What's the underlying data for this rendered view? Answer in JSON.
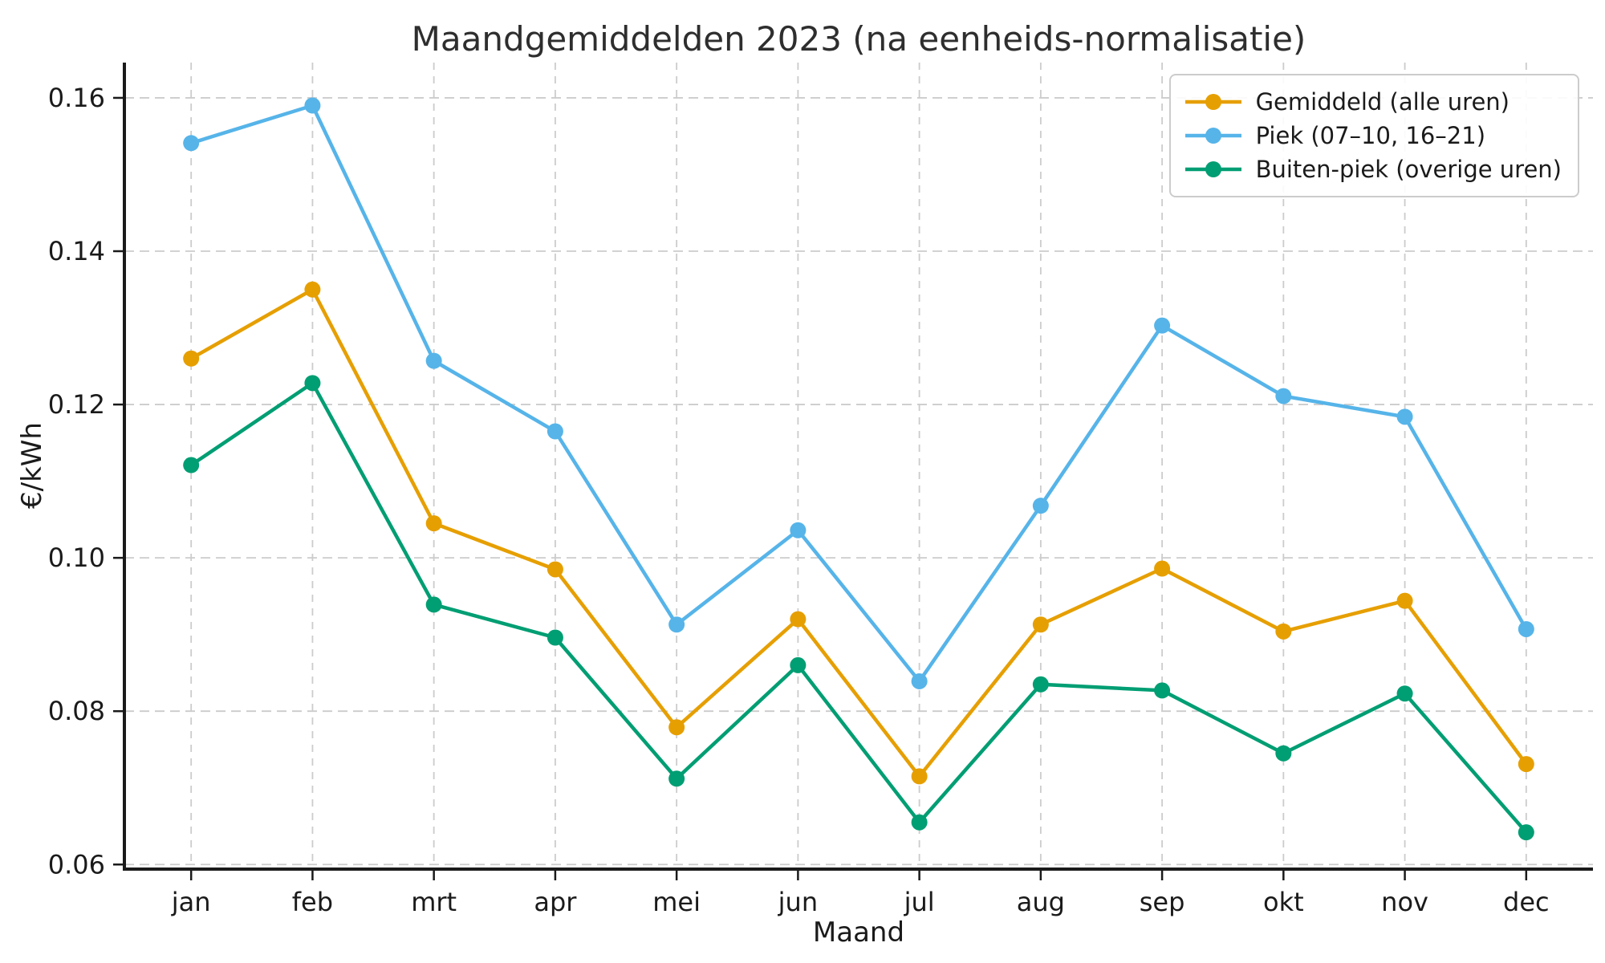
{
  "chart_data": {
    "type": "line",
    "title": "Maandgemiddelden 2023 (na eenheids-normalisatie)",
    "xlabel": "Maand",
    "ylabel": "€/kWh",
    "categories": [
      "jan",
      "feb",
      "mrt",
      "apr",
      "mei",
      "jun",
      "jul",
      "aug",
      "sep",
      "okt",
      "nov",
      "dec"
    ],
    "series": [
      {
        "name": "Gemiddeld (alle uren)",
        "color": "#E69F00",
        "values": [
          0.126,
          0.135,
          0.1045,
          0.0985,
          0.0779,
          0.092,
          0.0715,
          0.0913,
          0.0986,
          0.0904,
          0.0944,
          0.0731
        ]
      },
      {
        "name": "Piek (07–10, 16–21)",
        "color": "#56B4E9",
        "values": [
          0.1541,
          0.159,
          0.1257,
          0.1165,
          0.0913,
          0.1036,
          0.0839,
          0.1068,
          0.1303,
          0.1211,
          0.1184,
          0.0907
        ]
      },
      {
        "name": "Buiten-piek (overige uren)",
        "color": "#009E73",
        "values": [
          0.1121,
          0.1228,
          0.0939,
          0.0896,
          0.0712,
          0.086,
          0.0655,
          0.0835,
          0.0827,
          0.0745,
          0.0823,
          0.0642
        ]
      }
    ],
    "yticks": [
      0.06,
      0.08,
      0.1,
      0.12,
      0.14,
      0.16
    ],
    "ytick_labels": [
      "0.06",
      "0.08",
      "0.10",
      "0.12",
      "0.14",
      "0.16"
    ],
    "ylim": [
      0.0594,
      0.1646
    ],
    "grid": true,
    "grid_color": "#cccccc",
    "axis_color": "#1a1a1a",
    "text_color": "#1a1a1a",
    "background": "#ffffff",
    "legend_position": "upper right"
  }
}
